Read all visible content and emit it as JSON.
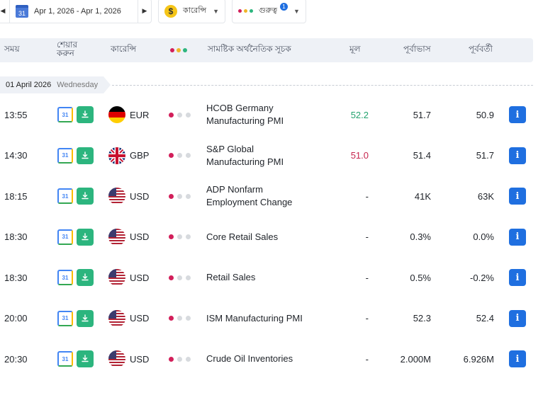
{
  "toolbar": {
    "date_range": "Apr 1, 2026 - Apr 1, 2026",
    "calendar_day": "31",
    "currency_label": "কারেন্সি",
    "currency_symbol": "$",
    "importance_label": "গুরুত্ব",
    "importance_badge": "1"
  },
  "header": {
    "time": "সময়",
    "notify_line1": "শেয়ার",
    "notify_line2": "করুন",
    "currency": "কারেন্সি",
    "event": "সামষ্টিক অর্থনৈতিক সূচক",
    "actual": "মূল",
    "forecast": "পূর্বাভাস",
    "previous": "পূর্ববর্তী"
  },
  "date_group": {
    "date": "01 April 2026",
    "weekday": "Wednesday"
  },
  "colors": {
    "importance_high": "#d21f5a",
    "importance_mid": "#f0b429",
    "importance_low": "#2cb57e",
    "actual_better": "#22a26d",
    "actual_worse": "#c7254e",
    "info_button": "#1f6fe0"
  },
  "rows": [
    {
      "time": "13:55",
      "flag": "de-flag",
      "currency": "EUR",
      "importance": 1,
      "event_line1": "HCOB Germany",
      "event_line2": "Manufacturing PMI",
      "actual": "52.2",
      "actual_state": "up",
      "forecast": "51.7",
      "previous": "50.9",
      "cal": "31"
    },
    {
      "time": "14:30",
      "flag": "gb-flag",
      "currency": "GBP",
      "importance": 1,
      "event_line1": "S&P Global",
      "event_line2": "Manufacturing PMI",
      "actual": "51.0",
      "actual_state": "down",
      "forecast": "51.4",
      "previous": "51.7",
      "cal": "31"
    },
    {
      "time": "18:15",
      "flag": "us-flag",
      "currency": "USD",
      "importance": 1,
      "event_line1": "ADP Nonfarm",
      "event_line2": "Employment Change",
      "actual": "-",
      "actual_state": "none",
      "forecast": "41K",
      "previous": "63K",
      "cal": "31"
    },
    {
      "time": "18:30",
      "flag": "us-flag",
      "currency": "USD",
      "importance": 1,
      "event_line1": "Core Retail Sales",
      "event_line2": "",
      "actual": "-",
      "actual_state": "none",
      "forecast": "0.3%",
      "previous": "0.0%",
      "cal": "31"
    },
    {
      "time": "18:30",
      "flag": "us-flag",
      "currency": "USD",
      "importance": 1,
      "event_line1": "Retail Sales",
      "event_line2": "",
      "actual": "-",
      "actual_state": "none",
      "forecast": "0.5%",
      "previous": "-0.2%",
      "cal": "31"
    },
    {
      "time": "20:00",
      "flag": "us-flag",
      "currency": "USD",
      "importance": 1,
      "event_line1": "ISM Manufacturing PMI",
      "event_line2": "",
      "actual": "-",
      "actual_state": "none",
      "forecast": "52.3",
      "previous": "52.4",
      "cal": "31"
    },
    {
      "time": "20:30",
      "flag": "us-flag",
      "currency": "USD",
      "importance": 1,
      "event_line1": "Crude Oil Inventories",
      "event_line2": "",
      "actual": "-",
      "actual_state": "none",
      "forecast": "2.000M",
      "previous": "6.926M",
      "cal": "31"
    }
  ]
}
